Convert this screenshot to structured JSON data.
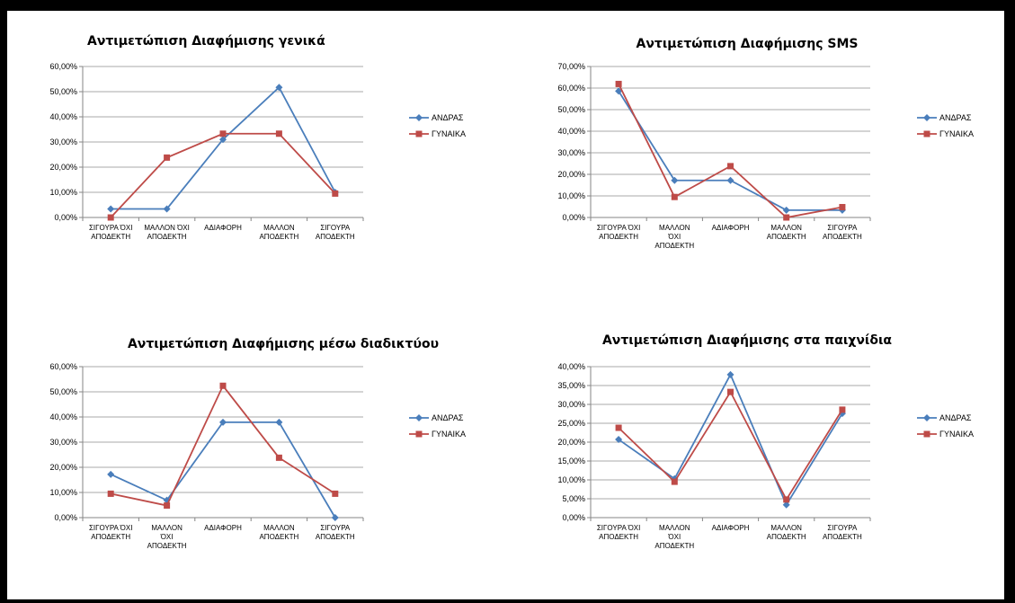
{
  "colors": {
    "andras": "#4A7EBB",
    "gynaika": "#BE4B48",
    "grid": "#8C8C8C",
    "axis": "#868686"
  },
  "chart_data": [
    {
      "type": "line",
      "title": "Αντιμετώπιση Διαφήμισης γενικά",
      "categories": [
        [
          "ΣΙΓΟΥΡΑ ΌΧΙ",
          "ΑΠΟΔΕΚΤΗ"
        ],
        [
          "ΜΑΛΛΟΝ ΌΧΙ",
          "ΑΠΟΔΕΚΤΗ"
        ],
        [
          "ΑΔΙΑΦΟΡΗ"
        ],
        [
          "ΜΑΛΛΟΝ",
          "ΑΠΟΔΕΚΤΗ"
        ],
        [
          "ΣΙΓΟΥΡΑ",
          "ΑΠΟΔΕΚΤΗ"
        ]
      ],
      "yticks": [
        "0,00%",
        "10,00%",
        "20,00%",
        "30,00%",
        "40,00%",
        "50,00%",
        "60,00%"
      ],
      "ylim": [
        0,
        60
      ],
      "legend": "right",
      "series": [
        {
          "name": "ΑΝΔΡΑΣ",
          "values": [
            3.4,
            3.4,
            31.0,
            51.7,
            10.0
          ]
        },
        {
          "name": "ΓΥΝΑΙΚΑ",
          "values": [
            0.0,
            23.8,
            33.3,
            33.3,
            9.5
          ]
        }
      ]
    },
    {
      "type": "line",
      "title": "Αντιμετώπιση Διαφήμισης SMS",
      "categories": [
        [
          "ΣΙΓΟΥΡΑ ΌΧΙ",
          "ΑΠΟΔΕΚΤΗ"
        ],
        [
          "ΜΑΛΛΟΝ",
          "ΌΧΙ",
          "ΑΠΟΔΕΚΤΗ"
        ],
        [
          "ΑΔΙΑΦΟΡΗ"
        ],
        [
          "ΜΑΛΛΟΝ",
          "ΑΠΟΔΕΚΤΗ"
        ],
        [
          "ΣΙΓΟΥΡΑ",
          "ΑΠΟΔΕΚΤΗ"
        ]
      ],
      "yticks": [
        "0,00%",
        "10,00%",
        "20,00%",
        "30,00%",
        "40,00%",
        "50,00%",
        "60,00%",
        "70,00%"
      ],
      "ylim": [
        0,
        70
      ],
      "legend": "right",
      "series": [
        {
          "name": "ΑΝΔΡΑΣ",
          "values": [
            58.6,
            17.2,
            17.2,
            3.4,
            3.4
          ]
        },
        {
          "name": "ΓΥΝΑΙΚΑ",
          "values": [
            61.9,
            9.5,
            23.8,
            0.0,
            4.8
          ]
        }
      ]
    },
    {
      "type": "line",
      "title": "Αντιμετώπιση Διαφήμισης μέσω διαδικτύου",
      "categories": [
        [
          "ΣΙΓΟΥΡΑ ΌΧΙ",
          "ΑΠΟΔΕΚΤΗ"
        ],
        [
          "ΜΑΛΛΟΝ",
          "ΌΧΙ",
          "ΑΠΟΔΕΚΤΗ"
        ],
        [
          "ΑΔΙΑΦΟΡΗ"
        ],
        [
          "ΜΑΛΛΟΝ",
          "ΑΠΟΔΕΚΤΗ"
        ],
        [
          "ΣΙΓΟΥΡΑ",
          "ΑΠΟΔΕΚΤΗ"
        ]
      ],
      "yticks": [
        "0,00%",
        "10,00%",
        "20,00%",
        "30,00%",
        "40,00%",
        "50,00%",
        "60,00%"
      ],
      "ylim": [
        0,
        60
      ],
      "legend": "right",
      "series": [
        {
          "name": "ΑΝΔΡΑΣ",
          "values": [
            17.2,
            6.9,
            37.9,
            37.9,
            0.0
          ]
        },
        {
          "name": "ΓΥΝΑΙΚΑ",
          "values": [
            9.5,
            4.8,
            52.4,
            23.8,
            9.5
          ]
        }
      ]
    },
    {
      "type": "line",
      "title": "Αντιμετώπιση Διαφήμισης στα παιχνίδια",
      "categories": [
        [
          "ΣΙΓΟΥΡΑ ΌΧΙ",
          "ΑΠΟΔΕΚΤΗ"
        ],
        [
          "ΜΑΛΛΟΝ",
          "ΌΧΙ",
          "ΑΠΟΔΕΚΤΗ"
        ],
        [
          "ΑΔΙΑΦΟΡΗ"
        ],
        [
          "ΜΑΛΛΟΝ",
          "ΑΠΟΔΕΚΤΗ"
        ],
        [
          "ΣΙΓΟΥΡΑ",
          "ΑΠΟΔΕΚΤΗ"
        ]
      ],
      "yticks": [
        "0,00%",
        "5,00%",
        "10,00%",
        "15,00%",
        "20,00%",
        "25,00%",
        "30,00%",
        "35,00%",
        "40,00%"
      ],
      "ylim": [
        0,
        40
      ],
      "legend": "right",
      "series": [
        {
          "name": "ΑΝΔΡΑΣ",
          "values": [
            20.7,
            10.3,
            37.9,
            3.4,
            27.6
          ]
        },
        {
          "name": "ΓΥΝΑΙΚΑ",
          "values": [
            23.8,
            9.5,
            33.3,
            4.8,
            28.6
          ]
        }
      ]
    }
  ]
}
